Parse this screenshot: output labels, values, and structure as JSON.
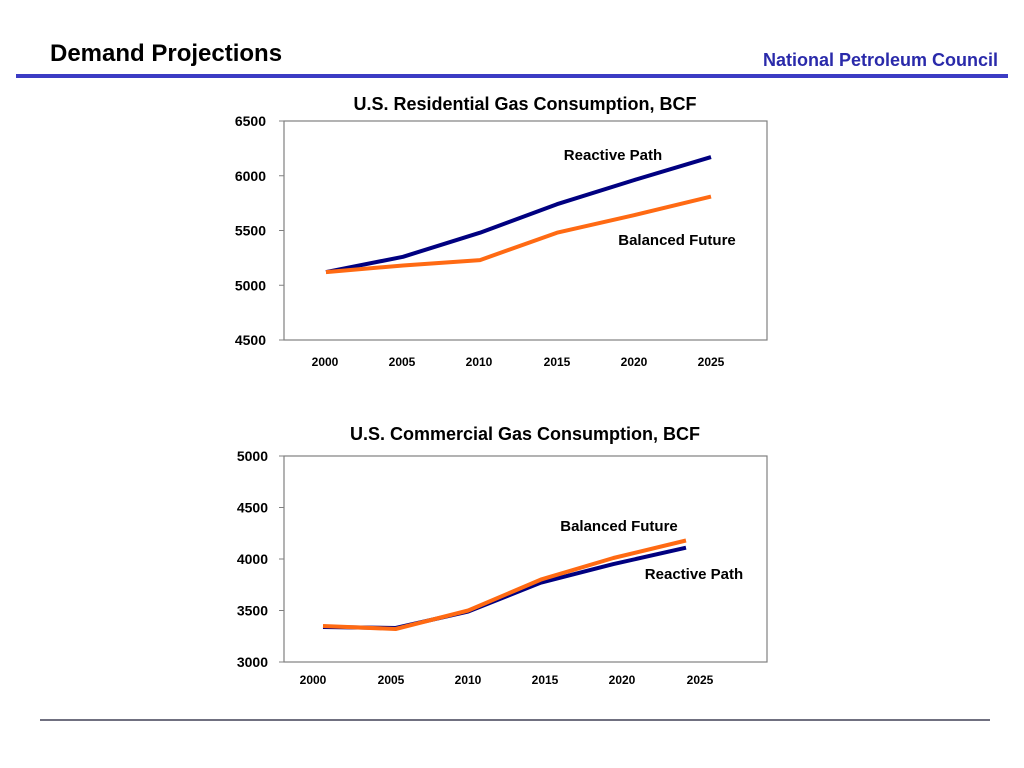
{
  "header": {
    "title": "Demand Projections",
    "organization": "National Petroleum Council",
    "accent_color": "#3c3cc4",
    "org_color": "#2a2aaa"
  },
  "chart_data": [
    {
      "type": "line",
      "title": "U.S. Residential Gas Consumption, BCF",
      "x": [
        2000,
        2005,
        2010,
        2015,
        2020,
        2025
      ],
      "x_tick_labels": [
        "2000",
        "2005",
        "2010",
        "2015",
        "2020",
        "2025"
      ],
      "ylim": [
        4500,
        6500
      ],
      "y_ticks": [
        6500,
        6000,
        5500,
        5000,
        4500
      ],
      "y_tick_labels": [
        "6500",
        "6000",
        "5500",
        "5000",
        "4500"
      ],
      "grid": false,
      "series": [
        {
          "name": "Reactive Path",
          "color": "#000080",
          "values": [
            5120,
            5260,
            5480,
            5740,
            5960,
            6170
          ]
        },
        {
          "name": "Balanced Future",
          "color": "#ff6a13",
          "values": [
            5120,
            5180,
            5230,
            5480,
            5640,
            5810
          ]
        }
      ]
    },
    {
      "type": "line",
      "title": "U.S. Commercial Gas Consumption, BCF",
      "x": [
        2000,
        2005,
        2010,
        2015,
        2020,
        2025
      ],
      "x_tick_labels": [
        "2000",
        "2005",
        "2010",
        "2015",
        "2020",
        "2025"
      ],
      "ylim": [
        3000,
        5000
      ],
      "y_ticks": [
        5000,
        4500,
        4000,
        3500,
        3000
      ],
      "y_tick_labels": [
        "5000",
        "4500",
        "4000",
        "3500",
        "3000"
      ],
      "grid": false,
      "series": [
        {
          "name": "Reactive Path",
          "color": "#000080",
          "values": [
            3340,
            3330,
            3490,
            3770,
            3950,
            4110
          ]
        },
        {
          "name": "Balanced Future",
          "color": "#ff6a13",
          "values": [
            3350,
            3320,
            3500,
            3800,
            4010,
            4180
          ]
        }
      ]
    }
  ]
}
